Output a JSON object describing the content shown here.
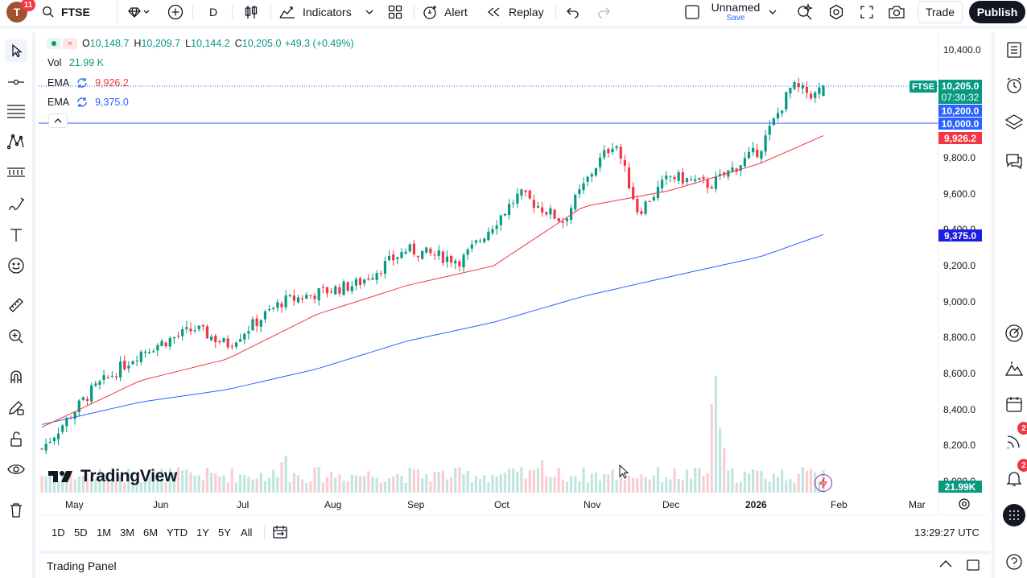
{
  "header": {
    "avatar_letter": "T",
    "notification_count": "11",
    "symbol": "FTSE",
    "interval": "D",
    "indicators_label": "Indicators",
    "alert_label": "Alert",
    "replay_label": "Replay",
    "layout_name": "Unnamed",
    "layout_sub": "Save",
    "trade_label": "Trade",
    "publish_label": "Publish"
  },
  "legend": {
    "ohlc": [
      {
        "k": "O",
        "v": "10,148.7"
      },
      {
        "k": "H",
        "v": "10,209.7"
      },
      {
        "k": "L",
        "v": "10,144.2"
      },
      {
        "k": "C",
        "v": "10,205.0"
      }
    ],
    "change": "+49.3 (+0.49%)",
    "vol_label": "Vol",
    "vol_value": "21.99 K",
    "ema1_label": "EMA",
    "ema1_value": "9,926.2",
    "ema2_label": "EMA",
    "ema2_value": "9,375.0"
  },
  "price_axis": {
    "ticks": [
      "10,400.0",
      "9,800.0",
      "9,600.0",
      "9,400.0",
      "9,200.0",
      "9,000.0",
      "8,800.0",
      "8,600.0",
      "8,400.0",
      "8,200.0",
      "8,000.0"
    ],
    "symbol_tag": "FTSE",
    "last_price": "10,205.0",
    "countdown": "07:30:32",
    "line_10200": "10,200.0",
    "line_10000": "10,000.0",
    "ema1_tag": "9,926.2",
    "ema2_tag": "9,375.0",
    "vol_tag": "21.99K"
  },
  "time_axis": {
    "labels": [
      "May",
      "Jun",
      "Jul",
      "Aug",
      "Sep",
      "Oct",
      "Nov",
      "Dec",
      "2026",
      "Feb",
      "Mar"
    ]
  },
  "watermark": "TradingView",
  "range_bar": {
    "ranges": [
      "1D",
      "5D",
      "1M",
      "3M",
      "6M",
      "YTD",
      "1Y",
      "5Y",
      "All"
    ],
    "clock": "13:29:27 UTC"
  },
  "trading_panel": {
    "label": "Trading Panel"
  },
  "right_badges": {
    "ideas": "2",
    "alerts": "2"
  },
  "colors": {
    "up": "#089981",
    "down": "#f23645",
    "ema1": "#f23645",
    "ema2": "#2962ff",
    "hline": "#2962ff",
    "ema2_tag": "#1e1ee0"
  },
  "chart_data": {
    "type": "candlestick",
    "symbol": "FTSE",
    "interval": "D",
    "series": [
      {
        "name": "EMA",
        "values_description": "approx. path",
        "points": [
          [
            "2025-04-28",
            8300
          ],
          [
            "2025-06-01",
            8560
          ],
          [
            "2025-07-01",
            8680
          ],
          [
            "2025-08-01",
            8930
          ],
          [
            "2025-09-01",
            9090
          ],
          [
            "2025-10-01",
            9200
          ],
          [
            "2025-11-01",
            9530
          ],
          [
            "2025-12-01",
            9620
          ],
          [
            "2026-01-01",
            9770
          ],
          [
            "2026-01-23",
            9926.2
          ]
        ]
      },
      {
        "name": "EMA",
        "points": [
          [
            "2025-04-28",
            8315
          ],
          [
            "2025-06-01",
            8440
          ],
          [
            "2025-07-01",
            8510
          ],
          [
            "2025-08-01",
            8625
          ],
          [
            "2025-09-01",
            8780
          ],
          [
            "2025-10-01",
            8885
          ],
          [
            "2025-11-01",
            9030
          ],
          [
            "2025-12-01",
            9140
          ],
          [
            "2026-01-01",
            9250
          ],
          [
            "2026-01-23",
            9375
          ]
        ]
      }
    ],
    "close_path": [
      [
        "2025-04-28",
        8180
      ],
      [
        "2025-05-15",
        8500
      ],
      [
        "2025-06-01",
        8720
      ],
      [
        "2025-06-20",
        8850
      ],
      [
        "2025-07-01",
        8760
      ],
      [
        "2025-07-20",
        9000
      ],
      [
        "2025-08-15",
        9100
      ],
      [
        "2025-09-01",
        9290
      ],
      [
        "2025-09-20",
        9230
      ],
      [
        "2025-10-10",
        9600
      ],
      [
        "2025-10-25",
        9450
      ],
      [
        "2025-11-05",
        9750
      ],
      [
        "2025-11-12",
        9900
      ],
      [
        "2025-11-20",
        9500
      ],
      [
        "2025-12-01",
        9700
      ],
      [
        "2025-12-15",
        9650
      ],
      [
        "2026-01-01",
        9850
      ],
      [
        "2026-01-12",
        10200
      ],
      [
        "2026-01-20",
        10150
      ],
      [
        "2026-01-23",
        10205
      ]
    ],
    "horizontal_lines": [
      10200,
      10000
    ],
    "ylim": [
      8050,
      10450
    ],
    "last": {
      "open": 10148.7,
      "high": 10209.7,
      "low": 10144.2,
      "close": 10205.0,
      "change": 49.3,
      "change_pct": 0.49,
      "volume": "21.99K"
    }
  }
}
